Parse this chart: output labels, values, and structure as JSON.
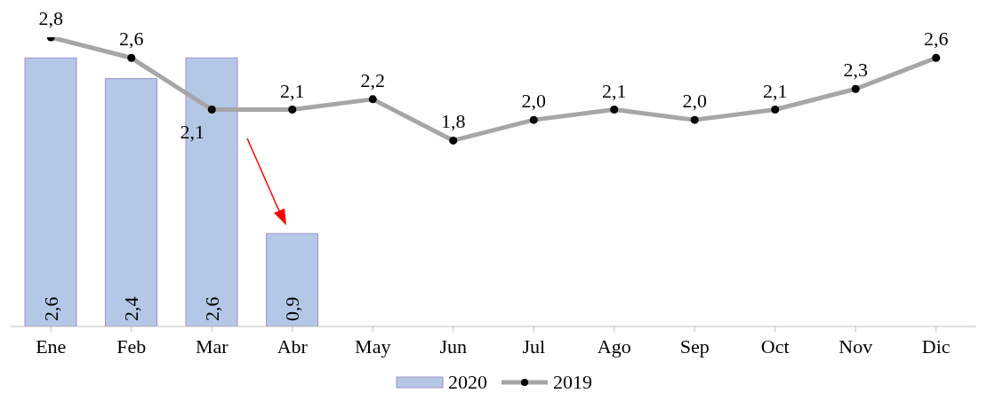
{
  "chart_data": {
    "type": "bar",
    "categories": [
      "Ene",
      "Feb",
      "Mar",
      "Abr",
      "May",
      "Jun",
      "Jul",
      "Ago",
      "Sep",
      "Oct",
      "Nov",
      "Dic"
    ],
    "series": [
      {
        "name": "2020",
        "color": "#b4c7e7",
        "values": [
          2.6,
          2.4,
          2.6,
          0.9,
          null,
          null,
          null,
          null,
          null,
          null,
          null,
          null
        ],
        "value_labels": [
          "2,6",
          "2,4",
          "2,6",
          "0,9",
          null,
          null,
          null,
          null,
          null,
          null,
          null,
          null
        ]
      },
      {
        "name": "2019",
        "type": "line",
        "color": "#a6a6a6",
        "values": [
          2.8,
          2.6,
          2.1,
          2.1,
          2.2,
          1.8,
          2.0,
          2.1,
          2.0,
          2.1,
          2.3,
          2.6
        ],
        "value_labels": [
          "2,8",
          "2,6",
          "2,1",
          "2,1",
          "2,2",
          "1,8",
          "2,0",
          "2,1",
          "2,0",
          "2,1",
          "2,3",
          "2,6"
        ]
      }
    ],
    "tick_labels": "x",
    "legend": "bottom",
    "marker": "circle",
    "line_style": "solid",
    "grid": false
  }
}
